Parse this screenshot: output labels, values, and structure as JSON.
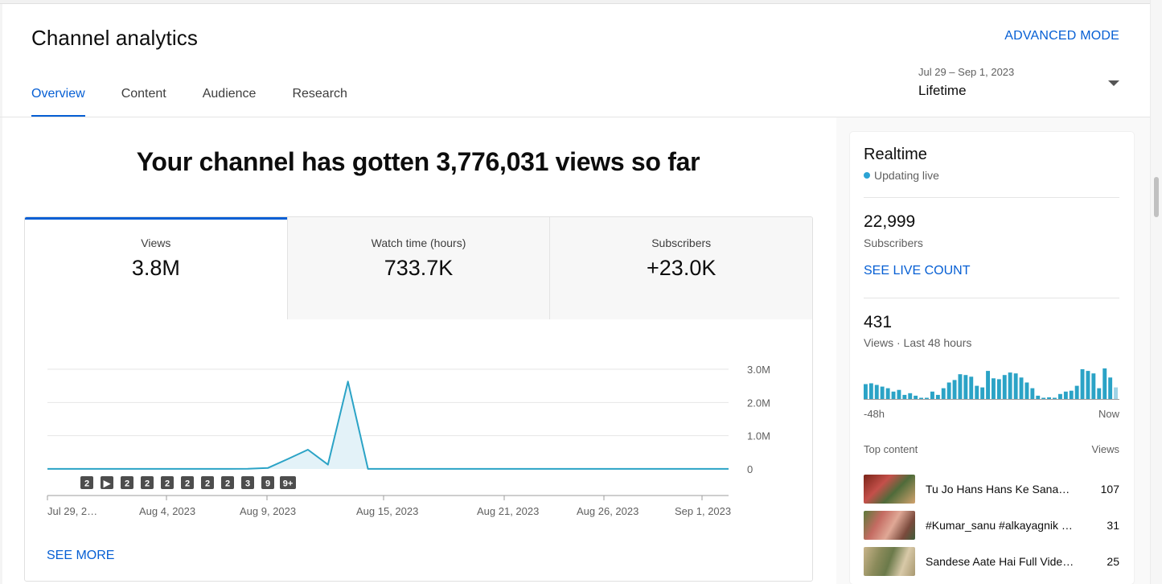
{
  "header": {
    "title": "Channel analytics",
    "advanced_mode": "ADVANCED MODE",
    "tabs": [
      {
        "label": "Overview",
        "active": true
      },
      {
        "label": "Content",
        "active": false
      },
      {
        "label": "Audience",
        "active": false
      },
      {
        "label": "Research",
        "active": false
      }
    ],
    "date_range": "Jul 29 – Sep 1, 2023",
    "period": "Lifetime"
  },
  "main": {
    "headline": "Your channel has gotten 3,776,031 views so far",
    "metrics": [
      {
        "label": "Views",
        "value": "3.8M",
        "active": true
      },
      {
        "label": "Watch time (hours)",
        "value": "733.7K",
        "active": false
      },
      {
        "label": "Subscribers",
        "value": "+23.0K",
        "active": false
      }
    ],
    "see_more": "SEE MORE"
  },
  "chart_data": {
    "type": "area",
    "title": "",
    "xlabel": "",
    "ylabel": "",
    "y_ticks": [
      "3.0M",
      "2.0M",
      "1.0M",
      "0"
    ],
    "ylim": [
      0,
      3000000
    ],
    "x_tick_labels": [
      "Jul 29, 2…",
      "Aug 4, 2023",
      "Aug 9, 2023",
      "Aug 15, 2023",
      "Aug 21, 2023",
      "Aug 26, 2023",
      "Sep 1, 2023"
    ],
    "x": [
      "Jul 29",
      "Jul 30",
      "Jul 31",
      "Aug 1",
      "Aug 2",
      "Aug 3",
      "Aug 4",
      "Aug 5",
      "Aug 6",
      "Aug 7",
      "Aug 8",
      "Aug 9",
      "Aug 10",
      "Aug 11",
      "Aug 12",
      "Aug 13",
      "Aug 14",
      "Aug 15",
      "Aug 16",
      "Aug 17",
      "Aug 18",
      "Aug 19",
      "Aug 20",
      "Aug 21",
      "Aug 22",
      "Aug 23",
      "Aug 24",
      "Aug 25",
      "Aug 26",
      "Aug 27",
      "Aug 28",
      "Aug 29",
      "Aug 30",
      "Aug 31",
      "Sep 1"
    ],
    "series": [
      {
        "values": [
          2000,
          2000,
          2000,
          2000,
          2000,
          2000,
          2000,
          2000,
          2000,
          2000,
          5000,
          30000,
          300000,
          580000,
          130000,
          2630000,
          2000,
          2000,
          2000,
          2000,
          2000,
          2000,
          2000,
          2000,
          2000,
          2000,
          2000,
          2000,
          2000,
          2000,
          2000,
          2000,
          2000,
          2000,
          2000
        ]
      }
    ],
    "markers": [
      {
        "label": "2",
        "type": "number"
      },
      {
        "label": "▶",
        "type": "play"
      },
      {
        "label": "2",
        "type": "number"
      },
      {
        "label": "2",
        "type": "number"
      },
      {
        "label": "2",
        "type": "number"
      },
      {
        "label": "2",
        "type": "number"
      },
      {
        "label": "2",
        "type": "number"
      },
      {
        "label": "2",
        "type": "number"
      },
      {
        "label": "3",
        "type": "number"
      },
      {
        "label": "9",
        "type": "number"
      },
      {
        "label": "9+",
        "type": "number"
      }
    ],
    "grid": true,
    "line_color": "#2ba3c6"
  },
  "realtime": {
    "title": "Realtime",
    "status": "Updating live",
    "subscribers_value": "22,999",
    "subscribers_label": "Subscribers",
    "see_live_count": "SEE LIVE COUNT",
    "views_value": "431",
    "views_label": "Views · Last 48 hours",
    "spark_values": [
      18,
      19,
      17,
      15,
      13,
      9,
      11,
      5,
      7,
      4,
      0,
      0,
      9,
      5,
      13,
      20,
      23,
      30,
      29,
      27,
      16,
      14,
      34,
      25,
      24,
      29,
      32,
      31,
      26,
      20,
      13,
      4,
      0,
      2,
      0,
      6,
      9,
      10,
      16,
      36,
      34,
      31,
      13,
      37,
      26,
      14
    ],
    "spark_left": "-48h",
    "spark_right": "Now",
    "top_content_label": "Top content",
    "views_col_label": "Views",
    "top_content": [
      {
        "title": "Tu Jo Hans Hans Ke Sana…",
        "views": "107"
      },
      {
        "title": "#Kumar_sanu #alkayagnik #…",
        "views": "31"
      },
      {
        "title": "Sandese Aate Hai Full Video …",
        "views": "25"
      }
    ],
    "spark_color": "#2ba3c6"
  }
}
